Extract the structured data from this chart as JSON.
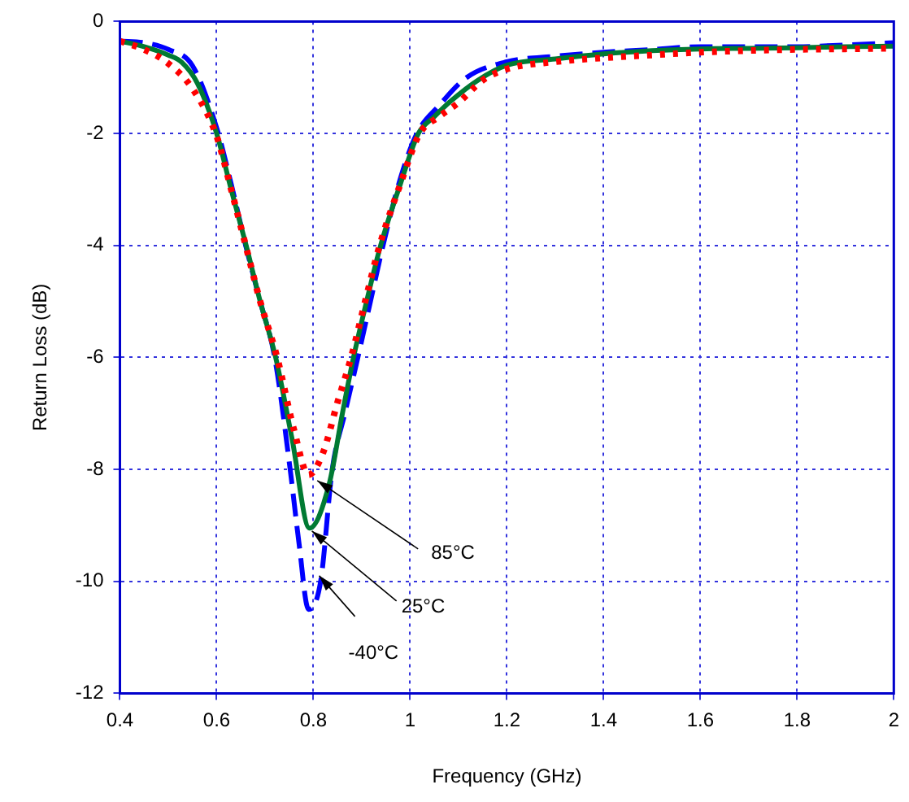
{
  "chart_data": {
    "type": "line",
    "xlabel": "Frequency (GHz)",
    "ylabel": "Return Loss (dB)",
    "xlim": [
      0.4,
      2
    ],
    "xticks": [
      0.4,
      0.6,
      0.8,
      1,
      1.2,
      1.4,
      1.6,
      1.8,
      2
    ],
    "ylim": [
      -12,
      0
    ],
    "yticks": [
      0,
      -2,
      -4,
      -6,
      -8,
      -10,
      -12
    ],
    "grid": true,
    "marker": "none",
    "series": [
      {
        "color": "#ff0000",
        "line_style": "dotted",
        "x": [
          0.4,
          0.45,
          0.5,
          0.55,
          0.6,
          0.63,
          0.66,
          0.69,
          0.725,
          0.76,
          0.79,
          0.82,
          0.85,
          0.878,
          0.907,
          0.937,
          0.98,
          1.02,
          1.06,
          1.1,
          1.15,
          1.2,
          1.3,
          1.4,
          1.5,
          1.6,
          1.7,
          1.8,
          1.9,
          2
        ],
        "values": [
          -0.35,
          -0.5,
          -0.75,
          -1.2,
          -2.05,
          -3.0,
          -4.0,
          -5.0,
          -6.0,
          -7.3,
          -8.1,
          -7.7,
          -6.8,
          -6.0,
          -5.0,
          -4.0,
          -2.9,
          -2.0,
          -1.7,
          -1.45,
          -1.05,
          -0.85,
          -0.72,
          -0.65,
          -0.6,
          -0.55,
          -0.52,
          -0.5,
          -0.49,
          -0.48
        ]
      },
      {
        "color": "#007a33",
        "line_style": "solid",
        "x": [
          0.4,
          0.45,
          0.5,
          0.528,
          0.56,
          0.6,
          0.63,
          0.661,
          0.69,
          0.722,
          0.756,
          0.792,
          0.833,
          0.86,
          0.883,
          0.91,
          0.939,
          0.98,
          1.017,
          1.05,
          1.083,
          1.14,
          1.2,
          1.3,
          1.4,
          1.5,
          1.6,
          1.7,
          1.8,
          1.9,
          2
        ],
        "values": [
          -0.35,
          -0.45,
          -0.6,
          -0.73,
          -1.1,
          -2.0,
          -3.0,
          -4.0,
          -5.0,
          -6.0,
          -7.46,
          -9.05,
          -8.25,
          -7.0,
          -6.0,
          -5.0,
          -4.0,
          -2.9,
          -2.0,
          -1.7,
          -1.43,
          -1.05,
          -0.78,
          -0.67,
          -0.58,
          -0.52,
          -0.49,
          -0.48,
          -0.47,
          -0.45,
          -0.44
        ]
      },
      {
        "color": "#0000ff",
        "line_style": "dashed",
        "x": [
          0.4,
          0.45,
          0.5,
          0.55,
          0.6,
          0.63,
          0.66,
          0.69,
          0.72,
          0.752,
          0.77,
          0.79,
          0.815,
          0.839,
          0.865,
          0.892,
          0.918,
          0.944,
          0.98,
          1.014,
          1.06,
          1.117,
          1.2,
          1.3,
          1.4,
          1.5,
          1.6,
          1.7,
          1.8,
          1.9,
          2
        ],
        "values": [
          -0.35,
          -0.38,
          -0.5,
          -0.79,
          -1.9,
          -2.9,
          -4.0,
          -5.0,
          -6.0,
          -8.0,
          -9.3,
          -10.5,
          -10.0,
          -8.0,
          -7.0,
          -6.0,
          -5.0,
          -4.0,
          -2.8,
          -2.0,
          -1.5,
          -1.0,
          -0.72,
          -0.62,
          -0.55,
          -0.5,
          -0.45,
          -0.45,
          -0.45,
          -0.42,
          -0.38
        ]
      }
    ],
    "annotations": [
      {
        "text": "85°C",
        "x": 0.808,
        "y": -8.2
      },
      {
        "text": "25°C",
        "x": 0.797,
        "y": -9.1
      },
      {
        "text": "-40°C",
        "x": 0.812,
        "y": -9.9
      }
    ]
  }
}
